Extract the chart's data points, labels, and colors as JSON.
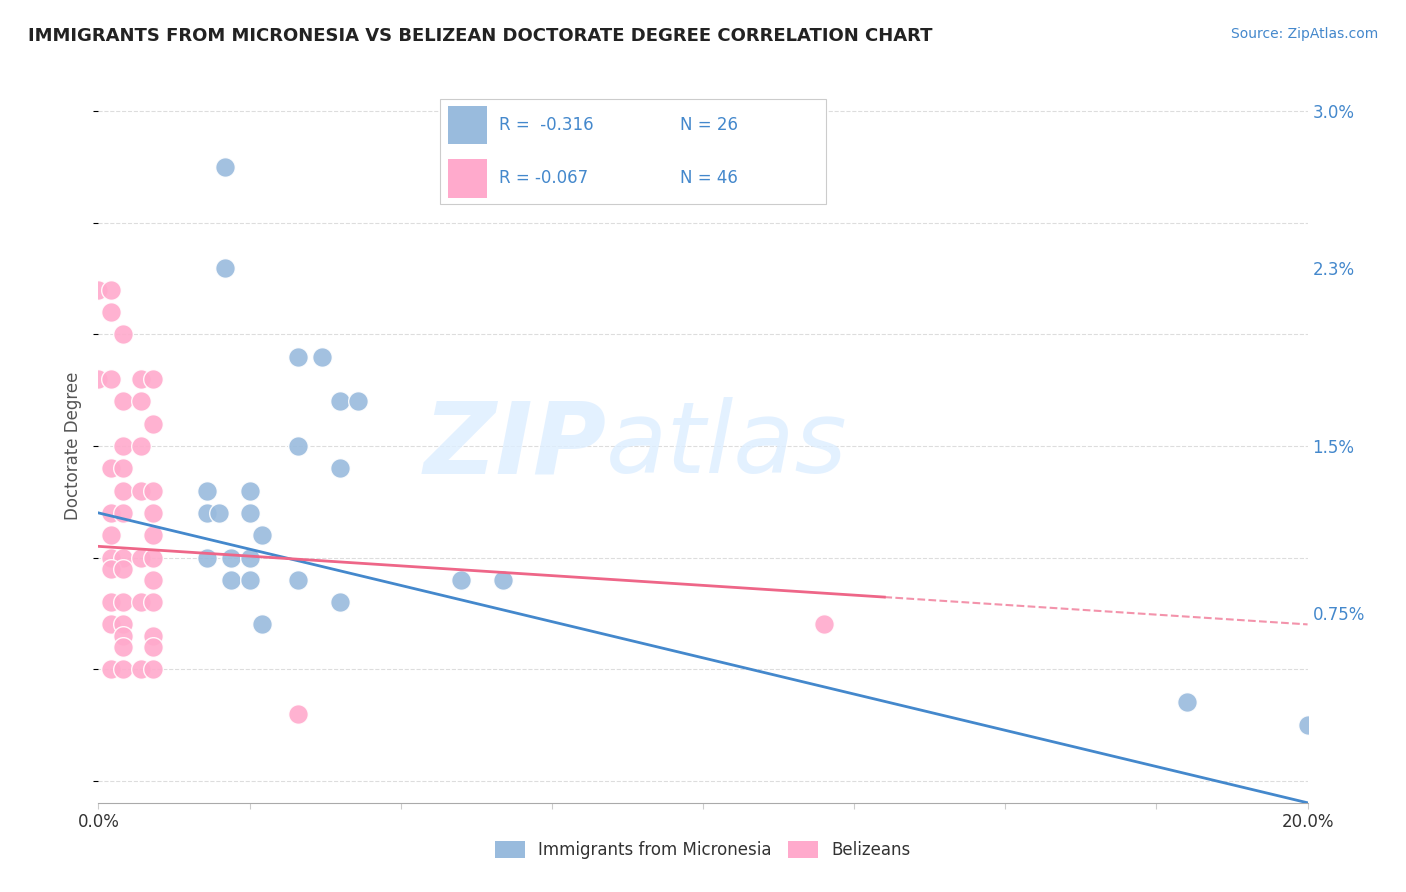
{
  "title": "IMMIGRANTS FROM MICRONESIA VS BELIZEAN DOCTORATE DEGREE CORRELATION CHART",
  "source": "Source: ZipAtlas.com",
  "ylabel": "Doctorate Degree",
  "xlim": [
    0.0,
    0.2
  ],
  "ylim": [
    -0.001,
    0.031
  ],
  "blue_scatter": [
    [
      0.021,
      0.0275
    ],
    [
      0.021,
      0.023
    ],
    [
      0.033,
      0.019
    ],
    [
      0.037,
      0.019
    ],
    [
      0.04,
      0.017
    ],
    [
      0.043,
      0.017
    ],
    [
      0.033,
      0.015
    ],
    [
      0.04,
      0.014
    ],
    [
      0.018,
      0.013
    ],
    [
      0.025,
      0.013
    ],
    [
      0.018,
      0.012
    ],
    [
      0.02,
      0.012
    ],
    [
      0.025,
      0.012
    ],
    [
      0.027,
      0.011
    ],
    [
      0.018,
      0.01
    ],
    [
      0.022,
      0.01
    ],
    [
      0.025,
      0.01
    ],
    [
      0.022,
      0.009
    ],
    [
      0.025,
      0.009
    ],
    [
      0.033,
      0.009
    ],
    [
      0.06,
      0.009
    ],
    [
      0.067,
      0.009
    ],
    [
      0.04,
      0.008
    ],
    [
      0.027,
      0.007
    ],
    [
      0.18,
      0.0035
    ],
    [
      0.2,
      0.0025
    ]
  ],
  "pink_scatter": [
    [
      0.0,
      0.022
    ],
    [
      0.002,
      0.022
    ],
    [
      0.002,
      0.021
    ],
    [
      0.004,
      0.02
    ],
    [
      0.0,
      0.018
    ],
    [
      0.002,
      0.018
    ],
    [
      0.007,
      0.018
    ],
    [
      0.009,
      0.018
    ],
    [
      0.004,
      0.017
    ],
    [
      0.007,
      0.017
    ],
    [
      0.009,
      0.016
    ],
    [
      0.004,
      0.015
    ],
    [
      0.007,
      0.015
    ],
    [
      0.002,
      0.014
    ],
    [
      0.004,
      0.014
    ],
    [
      0.004,
      0.013
    ],
    [
      0.007,
      0.013
    ],
    [
      0.009,
      0.013
    ],
    [
      0.002,
      0.012
    ],
    [
      0.004,
      0.012
    ],
    [
      0.009,
      0.012
    ],
    [
      0.002,
      0.011
    ],
    [
      0.009,
      0.011
    ],
    [
      0.002,
      0.01
    ],
    [
      0.004,
      0.01
    ],
    [
      0.007,
      0.01
    ],
    [
      0.009,
      0.01
    ],
    [
      0.002,
      0.0095
    ],
    [
      0.004,
      0.0095
    ],
    [
      0.009,
      0.009
    ],
    [
      0.002,
      0.008
    ],
    [
      0.004,
      0.008
    ],
    [
      0.007,
      0.008
    ],
    [
      0.009,
      0.008
    ],
    [
      0.002,
      0.007
    ],
    [
      0.004,
      0.007
    ],
    [
      0.004,
      0.0065
    ],
    [
      0.009,
      0.0065
    ],
    [
      0.004,
      0.006
    ],
    [
      0.009,
      0.006
    ],
    [
      0.002,
      0.005
    ],
    [
      0.004,
      0.005
    ],
    [
      0.007,
      0.005
    ],
    [
      0.009,
      0.005
    ],
    [
      0.12,
      0.007
    ],
    [
      0.033,
      0.003
    ]
  ],
  "blue_line_x": [
    0.0,
    0.2
  ],
  "blue_line_y": [
    0.012,
    -0.001
  ],
  "pink_line_x": [
    0.0,
    0.2
  ],
  "pink_line_y": [
    0.0105,
    0.007
  ],
  "pink_line_solid_end": 0.13,
  "blue_color": "#99BBDD",
  "pink_color": "#FFAACC",
  "blue_line_color": "#4488CC",
  "pink_line_color": "#EE6688",
  "legend_r_blue": "R =  -0.316",
  "legend_n_blue": "N = 26",
  "legend_r_pink": "R = -0.067",
  "legend_n_pink": "N = 46",
  "legend_label_blue": "Immigrants from Micronesia",
  "legend_label_pink": "Belizeans",
  "watermark_zip": "ZIP",
  "watermark_atlas": "atlas",
  "background_color": "#FFFFFF",
  "grid_color": "#DDDDDD",
  "ytick_positions": [
    0.0,
    0.0075,
    0.015,
    0.023,
    0.03
  ],
  "ytick_labels": [
    "",
    "0.75%",
    "1.5%",
    "2.3%",
    "3.0%"
  ]
}
